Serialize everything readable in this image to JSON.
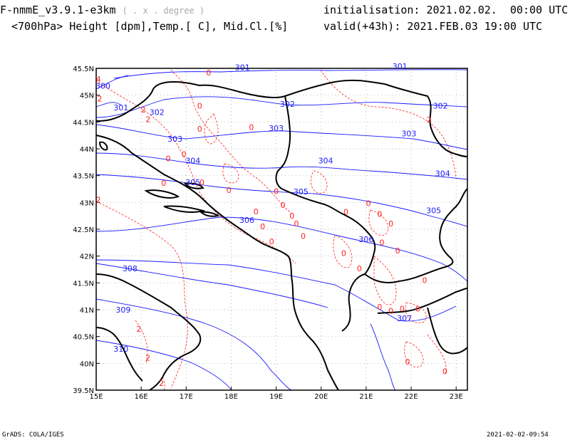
{
  "header": {
    "model": "F-nmmE_v3.9.1-e3km",
    "model_unit": "( . x . degree )",
    "variables": "<700hPa> Height [dpm],Temp.[ C], Mid.Cl.[%]",
    "initialisation_label": "initialisation:",
    "initialisation_value": "2021.02.02.  00:00 UTC",
    "valid_label": "valid(+43h):",
    "valid_value": "2021.FEB.03 19:00 UTC"
  },
  "footer": {
    "left": "GrADS: COLA/IGES",
    "right": "2021-02-02-09:54"
  },
  "colors": {
    "height_contour": "#1a1aff",
    "temperature_contour": "#ff2020",
    "coastline": "#000000",
    "grid": "#9a9a9a"
  },
  "map": {
    "lon_range": [
      15,
      23.25
    ],
    "lat_range": [
      39.5,
      45.5
    ],
    "lon_ticks": [
      "15E",
      "16E",
      "17E",
      "18E",
      "19E",
      "20E",
      "21E",
      "22E",
      "23E"
    ],
    "lat_ticks": [
      "39.5N",
      "40N",
      "40.5N",
      "41N",
      "41.5N",
      "42N",
      "42.5N",
      "43N",
      "43.5N",
      "44N",
      "44.5N",
      "45N",
      "45.5N"
    ],
    "grid": "dotted"
  },
  "height_labels": [
    {
      "text": "300",
      "lon": 15.15,
      "lat": 45.12
    },
    {
      "text": "301",
      "lon": 18.25,
      "lat": 45.47
    },
    {
      "text": "301",
      "lon": 21.75,
      "lat": 45.49
    },
    {
      "text": "301",
      "lon": 15.55,
      "lat": 44.72
    },
    {
      "text": "302",
      "lon": 16.35,
      "lat": 44.63
    },
    {
      "text": "302",
      "lon": 19.25,
      "lat": 44.78
    },
    {
      "text": "302",
      "lon": 22.65,
      "lat": 44.75
    },
    {
      "text": "303",
      "lon": 16.75,
      "lat": 44.13
    },
    {
      "text": "303",
      "lon": 19.0,
      "lat": 44.33
    },
    {
      "text": "303",
      "lon": 21.95,
      "lat": 44.23
    },
    {
      "text": "304",
      "lon": 17.15,
      "lat": 43.73
    },
    {
      "text": "304",
      "lon": 20.1,
      "lat": 43.73
    },
    {
      "text": "304",
      "lon": 22.7,
      "lat": 43.49
    },
    {
      "text": "305",
      "lon": 17.15,
      "lat": 43.32
    },
    {
      "text": "305",
      "lon": 19.55,
      "lat": 43.15
    },
    {
      "text": "305",
      "lon": 22.5,
      "lat": 42.8
    },
    {
      "text": "306",
      "lon": 18.35,
      "lat": 42.62
    },
    {
      "text": "306",
      "lon": 21.0,
      "lat": 42.26
    },
    {
      "text": "307",
      "lon": 21.85,
      "lat": 40.79
    },
    {
      "text": "308",
      "lon": 15.75,
      "lat": 41.72
    },
    {
      "text": "309",
      "lon": 15.6,
      "lat": 40.95
    },
    {
      "text": "310",
      "lon": 15.55,
      "lat": 40.22
    }
  ],
  "temperature_labels": [
    {
      "text": "4",
      "lon": 15.05,
      "lat": 45.25
    },
    {
      "text": "2",
      "lon": 15.08,
      "lat": 44.88
    },
    {
      "text": "2",
      "lon": 16.05,
      "lat": 44.68
    },
    {
      "text": "2",
      "lon": 16.15,
      "lat": 44.5
    },
    {
      "text": "0",
      "lon": 17.3,
      "lat": 44.75
    },
    {
      "text": "0",
      "lon": 17.5,
      "lat": 45.37
    },
    {
      "text": "0",
      "lon": 18.45,
      "lat": 44.35
    },
    {
      "text": "0",
      "lon": 17.3,
      "lat": 44.32
    },
    {
      "text": "0",
      "lon": 16.95,
      "lat": 43.85
    },
    {
      "text": "0",
      "lon": 16.6,
      "lat": 43.77
    },
    {
      "text": "0",
      "lon": 16.5,
      "lat": 43.31
    },
    {
      "text": "0",
      "lon": 17.35,
      "lat": 43.32
    },
    {
      "text": "0",
      "lon": 17.95,
      "lat": 43.18
    },
    {
      "text": "0",
      "lon": 19.0,
      "lat": 43.16
    },
    {
      "text": "0",
      "lon": 19.15,
      "lat": 42.9
    },
    {
      "text": "0",
      "lon": 19.35,
      "lat": 42.7
    },
    {
      "text": "0",
      "lon": 18.55,
      "lat": 42.78
    },
    {
      "text": "0",
      "lon": 18.7,
      "lat": 42.5
    },
    {
      "text": "0",
      "lon": 19.45,
      "lat": 42.55
    },
    {
      "text": "0",
      "lon": 19.6,
      "lat": 42.32
    },
    {
      "text": "0",
      "lon": 18.9,
      "lat": 42.22
    },
    {
      "text": "0",
      "lon": 20.55,
      "lat": 42.77
    },
    {
      "text": "0",
      "lon": 21.05,
      "lat": 42.93
    },
    {
      "text": "0",
      "lon": 21.3,
      "lat": 42.73
    },
    {
      "text": "0",
      "lon": 21.55,
      "lat": 42.55
    },
    {
      "text": "0",
      "lon": 21.35,
      "lat": 42.2
    },
    {
      "text": "0",
      "lon": 20.5,
      "lat": 42.0
    },
    {
      "text": "0",
      "lon": 20.85,
      "lat": 41.72
    },
    {
      "text": "0",
      "lon": 21.7,
      "lat": 42.05
    },
    {
      "text": "0",
      "lon": 22.3,
      "lat": 41.5
    },
    {
      "text": "0",
      "lon": 21.3,
      "lat": 41.0
    },
    {
      "text": "0",
      "lon": 21.55,
      "lat": 40.93
    },
    {
      "text": "0",
      "lon": 21.8,
      "lat": 40.97
    },
    {
      "text": "0",
      "lon": 22.15,
      "lat": 40.97
    },
    {
      "text": "0",
      "lon": 21.92,
      "lat": 39.98
    },
    {
      "text": "0",
      "lon": 22.75,
      "lat": 39.8
    },
    {
      "text": "2",
      "lon": 22.4,
      "lat": 44.49
    },
    {
      "text": "2",
      "lon": 15.05,
      "lat": 43.0
    },
    {
      "text": "2",
      "lon": 15.95,
      "lat": 40.59
    },
    {
      "text": "2",
      "lon": 16.15,
      "lat": 40.05
    },
    {
      "text": "2",
      "lon": 16.45,
      "lat": 39.58
    }
  ]
}
